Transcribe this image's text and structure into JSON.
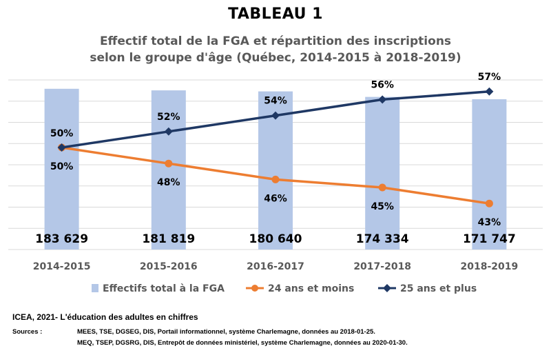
{
  "title": "TABLEAU 1",
  "subtitle_line1": "Effectif total de la FGA et répartition des inscriptions",
  "subtitle_line2": "selon le groupe d'âge (Québec, 2014-2015 à 2018-2019)",
  "colors": {
    "bars": "#b4c7e7",
    "young": "#ed7d31",
    "old": "#1f3864",
    "grid": "#d9d9d9"
  },
  "chart_data": {
    "type": "bar+line",
    "categories": [
      "2014-2015",
      "2015-2016",
      "2016-2017",
      "2017-2018",
      "2018-2019"
    ],
    "bar_series": {
      "name": "Effectifs total à la FGA",
      "values": [
        183629,
        181819,
        180640,
        174334,
        171747
      ],
      "labels": [
        "183 629",
        "181 819",
        "180 640",
        "174 334",
        "171 747"
      ]
    },
    "line_series": [
      {
        "name": "24 ans et moins",
        "values": [
          50,
          48,
          46,
          45,
          43
        ],
        "labels": [
          "50%",
          "48%",
          "46%",
          "45%",
          "43%"
        ]
      },
      {
        "name": "25 ans et plus",
        "values": [
          50,
          52,
          54,
          56,
          57
        ],
        "labels": [
          "50%",
          "52%",
          "54%",
          "56%",
          "57%"
        ]
      }
    ],
    "bar_axis_range": [
      0,
      200000
    ],
    "pct_axis_range": [
      40,
      60
    ],
    "grid": true,
    "legend_position": "bottom"
  },
  "source_title": "ICEA, 2021- L'éducation des adultes en chiffres",
  "sources_label": "Sources :",
  "sources": [
    "MEES, TSE, DGSEG, DIS, Portail informationnel, système Charlemagne, données au 2018-01-25.",
    "MEQ, TSEP, DGSRG, DIS, Entrepôt de données ministériel, système Charlemagne, données au 2020-01-30."
  ]
}
